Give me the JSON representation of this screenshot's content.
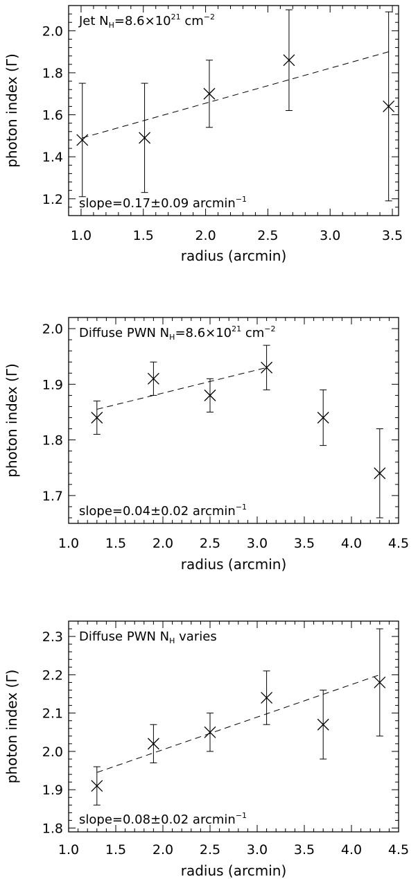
{
  "chart_data": [
    {
      "type": "scatter",
      "xlabel": "radius (arcmin)",
      "ylabel": "photon index (Γ)",
      "xlim": [
        0.9,
        3.55
      ],
      "ylim": [
        1.12,
        2.12
      ],
      "xticks": [
        1.0,
        1.5,
        2.0,
        2.5,
        3.0,
        3.5
      ],
      "xtick_labels": [
        "1.0",
        "1.5",
        "2.0",
        "2.5",
        "3.0",
        "3.5"
      ],
      "yticks": [
        1.2,
        1.4,
        1.6,
        1.8,
        2.0
      ],
      "ytick_labels": [
        "1.2",
        "1.4",
        "1.6",
        "1.8",
        "2.0"
      ],
      "title_parts": {
        "main": "Jet N",
        "sub": "H",
        "mid": "=8.6×10",
        "sup": "21",
        "end": " cm",
        "sup2": "−2"
      },
      "slope_parts": {
        "main": "slope=0.17±0.09 arcmin",
        "sup": "−1"
      },
      "points": [
        {
          "x": 1.01,
          "y": 1.48,
          "ylo": 1.21,
          "yhi": 1.75
        },
        {
          "x": 1.51,
          "y": 1.49,
          "ylo": 1.23,
          "yhi": 1.75
        },
        {
          "x": 2.03,
          "y": 1.7,
          "ylo": 1.54,
          "yhi": 1.86
        },
        {
          "x": 2.67,
          "y": 1.86,
          "ylo": 1.62,
          "yhi": 2.1
        },
        {
          "x": 3.47,
          "y": 1.64,
          "ylo": 1.19,
          "yhi": 2.09
        }
      ],
      "fit_line": {
        "x": [
          1.01,
          3.47
        ],
        "y": [
          1.49,
          1.9
        ]
      }
    },
    {
      "type": "scatter",
      "xlabel": "radius (arcmin)",
      "ylabel": "photon index (Γ)",
      "xlim": [
        1.0,
        4.5
      ],
      "ylim": [
        1.65,
        2.02
      ],
      "xticks": [
        1.0,
        1.5,
        2.0,
        2.5,
        3.0,
        3.5,
        4.0,
        4.5
      ],
      "xtick_labels": [
        "1.0",
        "1.5",
        "2.0",
        "2.5",
        "3.0",
        "3.5",
        "4.0",
        "4.5"
      ],
      "yticks": [
        1.7,
        1.8,
        1.9,
        2.0
      ],
      "ytick_labels": [
        "1.7",
        "1.8",
        "1.9",
        "2.0"
      ],
      "title_parts": {
        "main": "Diffuse PWN N",
        "sub": "H",
        "mid": "=8.6×10",
        "sup": "21",
        "end": " cm",
        "sup2": "−2"
      },
      "slope_parts": {
        "main": "slope=0.04±0.02 arcmin",
        "sup": "−1"
      },
      "points": [
        {
          "x": 1.3,
          "y": 1.84,
          "ylo": 1.81,
          "yhi": 1.87
        },
        {
          "x": 1.9,
          "y": 1.91,
          "ylo": 1.88,
          "yhi": 1.94
        },
        {
          "x": 2.5,
          "y": 1.88,
          "ylo": 1.85,
          "yhi": 1.91
        },
        {
          "x": 3.1,
          "y": 1.93,
          "ylo": 1.89,
          "yhi": 1.97
        },
        {
          "x": 3.7,
          "y": 1.84,
          "ylo": 1.79,
          "yhi": 1.89
        },
        {
          "x": 4.3,
          "y": 1.74,
          "ylo": 1.66,
          "yhi": 1.82
        }
      ],
      "fit_line": {
        "x": [
          1.3,
          3.1
        ],
        "y": [
          1.855,
          1.93
        ]
      }
    },
    {
      "type": "scatter",
      "xlabel": "radius (arcmin)",
      "ylabel": "photon index (Γ)",
      "xlim": [
        1.0,
        4.5
      ],
      "ylim": [
        1.79,
        2.34
      ],
      "xticks": [
        1.0,
        1.5,
        2.0,
        2.5,
        3.0,
        3.5,
        4.0,
        4.5
      ],
      "xtick_labels": [
        "1.0",
        "1.5",
        "2.0",
        "2.5",
        "3.0",
        "3.5",
        "4.0",
        "4.5"
      ],
      "yticks": [
        1.8,
        1.9,
        2.0,
        2.1,
        2.2,
        2.3
      ],
      "ytick_labels": [
        "1.8",
        "1.9",
        "2.0",
        "2.1",
        "2.2",
        "2.3"
      ],
      "title_parts": {
        "main": "Diffuse PWN N",
        "sub": "H",
        "mid": " varies",
        "sup": "",
        "end": "",
        "sup2": ""
      },
      "slope_parts": {
        "main": "slope=0.08±0.02 arcmin",
        "sup": "−1"
      },
      "points": [
        {
          "x": 1.3,
          "y": 1.91,
          "ylo": 1.86,
          "yhi": 1.96
        },
        {
          "x": 1.9,
          "y": 2.02,
          "ylo": 1.97,
          "yhi": 2.07
        },
        {
          "x": 2.5,
          "y": 2.05,
          "ylo": 2.0,
          "yhi": 2.1
        },
        {
          "x": 3.1,
          "y": 2.14,
          "ylo": 2.07,
          "yhi": 2.21
        },
        {
          "x": 3.7,
          "y": 2.07,
          "ylo": 1.98,
          "yhi": 2.16
        },
        {
          "x": 4.3,
          "y": 2.18,
          "ylo": 2.04,
          "yhi": 2.32
        }
      ],
      "fit_line": {
        "x": [
          1.3,
          4.3
        ],
        "y": [
          1.945,
          2.2
        ]
      }
    }
  ]
}
